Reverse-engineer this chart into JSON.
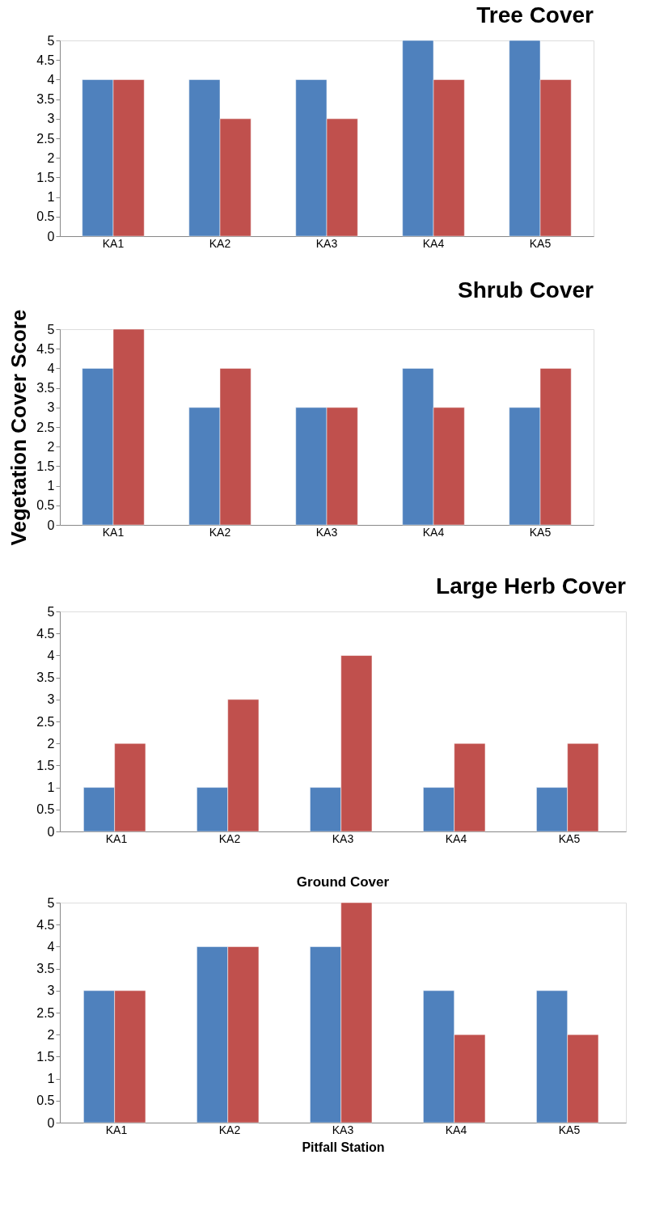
{
  "chart_data": [
    {
      "type": "bar",
      "title": "Tree Cover",
      "categories": [
        "KA1",
        "KA2",
        "KA3",
        "KA4",
        "KA5"
      ],
      "series": [
        {
          "color": "#4f81bd",
          "values": [
            4,
            4,
            4,
            5,
            5
          ]
        },
        {
          "color": "#c0504d",
          "values": [
            4,
            3,
            3,
            4,
            4
          ]
        }
      ],
      "ylim": [
        0,
        5
      ],
      "yticks": [
        0,
        0.5,
        1,
        1.5,
        2,
        2.5,
        3,
        3.5,
        4,
        4.5,
        5
      ],
      "grid": false,
      "legend": false
    },
    {
      "type": "bar",
      "title": "Shrub Cover",
      "ylabel": "Vegetation Cover Score",
      "categories": [
        "KA1",
        "KA2",
        "KA3",
        "KA4",
        "KA5"
      ],
      "series": [
        {
          "color": "#4f81bd",
          "values": [
            4,
            3,
            3,
            4,
            3
          ]
        },
        {
          "color": "#c0504d",
          "values": [
            5,
            4,
            3,
            3,
            4
          ]
        }
      ],
      "ylim": [
        0,
        5
      ],
      "yticks": [
        0,
        0.5,
        1,
        1.5,
        2,
        2.5,
        3,
        3.5,
        4,
        4.5,
        5
      ],
      "grid": false,
      "legend": false
    },
    {
      "type": "bar",
      "title": "Large Herb Cover",
      "categories": [
        "KA1",
        "KA2",
        "KA3",
        "KA4",
        "KA5"
      ],
      "series": [
        {
          "color": "#4f81bd",
          "values": [
            1,
            1,
            1,
            1,
            1
          ]
        },
        {
          "color": "#c0504d",
          "values": [
            2,
            3,
            4,
            2,
            2
          ]
        }
      ],
      "ylim": [
        0,
        5
      ],
      "yticks": [
        0,
        0.5,
        1,
        1.5,
        2,
        2.5,
        3,
        3.5,
        4,
        4.5,
        5
      ],
      "grid": false,
      "legend": false
    },
    {
      "type": "bar",
      "title": "Ground Cover",
      "xlabel": "Pitfall Station",
      "categories": [
        "KA1",
        "KA2",
        "KA3",
        "KA4",
        "KA5"
      ],
      "series": [
        {
          "color": "#4f81bd",
          "values": [
            3,
            4,
            4,
            3,
            3
          ]
        },
        {
          "color": "#c0504d",
          "values": [
            3,
            4,
            5,
            2,
            2
          ]
        }
      ],
      "ylim": [
        0,
        5
      ],
      "yticks": [
        0,
        0.5,
        1,
        1.5,
        2,
        2.5,
        3,
        3.5,
        4,
        4.5,
        5
      ],
      "grid": false,
      "legend": false
    }
  ]
}
